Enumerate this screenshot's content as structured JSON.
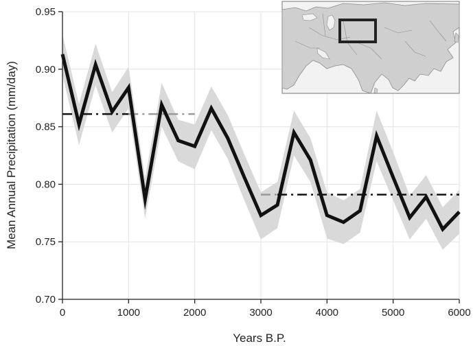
{
  "chart_data": {
    "type": "line",
    "xlabel": "Years B.P.",
    "ylabel": "Mean Annual Precipitation (mm/day)",
    "xlim": [
      0,
      6000
    ],
    "ylim": [
      0.7,
      0.95
    ],
    "xticks": [
      "0",
      "1000",
      "2000",
      "3000",
      "4000",
      "5000",
      "6000"
    ],
    "yticks": [
      "0.70",
      "0.75",
      "0.80",
      "0.85",
      "0.90",
      "0.95"
    ],
    "grid": true,
    "x": [
      0,
      250,
      500,
      750,
      1000,
      1250,
      1500,
      1750,
      2000,
      2250,
      2500,
      2750,
      3000,
      3250,
      3500,
      3750,
      4000,
      4250,
      4500,
      4750,
      5000,
      5250,
      5500,
      5750,
      6000
    ],
    "series": [
      {
        "style": "solid",
        "color": "#111111",
        "values": [
          0.913,
          0.852,
          0.904,
          0.863,
          0.884,
          0.787,
          0.869,
          0.838,
          0.833,
          0.866,
          0.84,
          0.806,
          0.773,
          0.782,
          0.845,
          0.821,
          0.773,
          0.767,
          0.777,
          0.842,
          0.806,
          0.771,
          0.789,
          0.761,
          0.776
        ]
      }
    ],
    "uncertainty_band": {
      "color": "#d9d9d9",
      "upper": [
        0.93,
        0.87,
        0.922,
        0.88,
        0.902,
        0.805,
        0.888,
        0.856,
        0.852,
        0.885,
        0.86,
        0.826,
        0.793,
        0.802,
        0.864,
        0.84,
        0.793,
        0.786,
        0.796,
        0.864,
        0.828,
        0.79,
        0.808,
        0.78,
        0.795
      ],
      "lower": [
        0.895,
        0.834,
        0.886,
        0.845,
        0.866,
        0.77,
        0.85,
        0.82,
        0.813,
        0.847,
        0.822,
        0.786,
        0.752,
        0.762,
        0.825,
        0.802,
        0.753,
        0.748,
        0.758,
        0.82,
        0.786,
        0.752,
        0.77,
        0.743,
        0.757
      ]
    },
    "reference_lines": [
      {
        "x_range": [
          0,
          1000
        ],
        "value": 0.861,
        "style": "dash-dot",
        "color": "#111111"
      },
      {
        "x_range": [
          1000,
          2000
        ],
        "value": 0.861,
        "style": "dash-dot",
        "color": "#999999"
      },
      {
        "x_range": [
          3000,
          3250
        ],
        "value": 0.791,
        "style": "dash-dot",
        "color": "#999999"
      },
      {
        "x_range": [
          3250,
          6000
        ],
        "value": 0.791,
        "style": "dash-dot",
        "color": "#111111"
      }
    ],
    "inset": {
      "content": "map of Asia with highlighted region",
      "position": "top-right",
      "highlight_color": "#222222"
    }
  }
}
